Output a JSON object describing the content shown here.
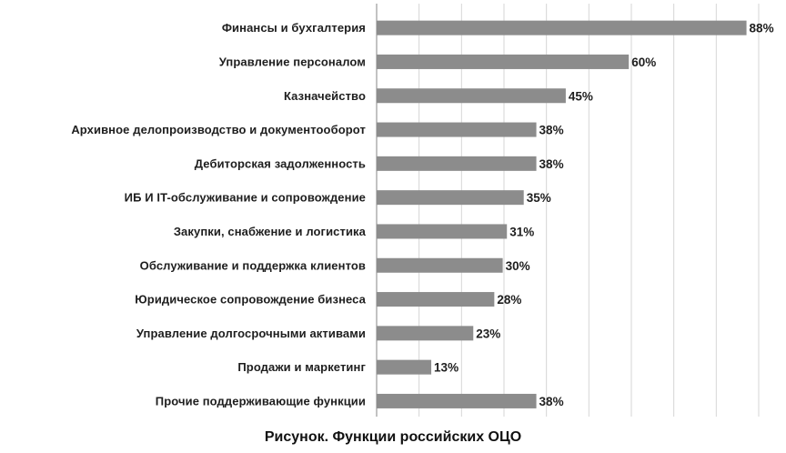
{
  "chart_data": {
    "type": "bar",
    "orientation": "horizontal",
    "categories": [
      "Финансы и бухгалтерия",
      "Управление персоналом",
      "Казначейство",
      "Архивное делопроизводство и документооборот",
      "Дебиторская задолженность",
      "ИБ И IT-обслуживание и сопровождение",
      "Закупки, снабжение и логистика",
      "Обслуживание и поддержка клиентов",
      "Юридическое сопровождение бизнеса",
      "Управление долгосрочными активами",
      "Продажи и маркетинг",
      "Прочие поддерживающие функции"
    ],
    "values": [
      88,
      60,
      45,
      38,
      38,
      35,
      31,
      30,
      28,
      23,
      13,
      38
    ],
    "value_labels": [
      "88%",
      "60%",
      "45%",
      "38%",
      "38%",
      "35%",
      "31%",
      "30%",
      "28%",
      "23%",
      "13%",
      "38%"
    ],
    "unit": "%",
    "xlim": [
      0,
      90
    ],
    "grid": true,
    "legend": "none",
    "bar_color": "#8c8c8c",
    "title": "Рисунок. Функции российских ОЦО"
  }
}
